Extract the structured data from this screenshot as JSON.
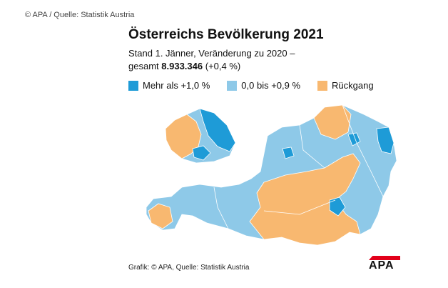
{
  "caption": "© APA / Quelle: Statistik Austria",
  "header": {
    "title": "Österreichs Bevölkerung 2021",
    "subtitle_line1": "Stand 1. Jänner, Veränderung zu 2020 –",
    "subtitle_line2": {
      "prefix": "gesamt",
      "total": "8.933.346",
      "change": "(+0,4 %)"
    }
  },
  "legend": [
    {
      "label": "Mehr als +1,0 %",
      "color": "#1e9bd7"
    },
    {
      "label": "0,0 bis +0,9 %",
      "color": "#8ec9e8"
    },
    {
      "label": "Rückgang",
      "color": "#f8b870"
    }
  ],
  "footer": {
    "source": "Grafik: © APA, Quelle: Statistik Austria",
    "logo": "APA"
  }
}
